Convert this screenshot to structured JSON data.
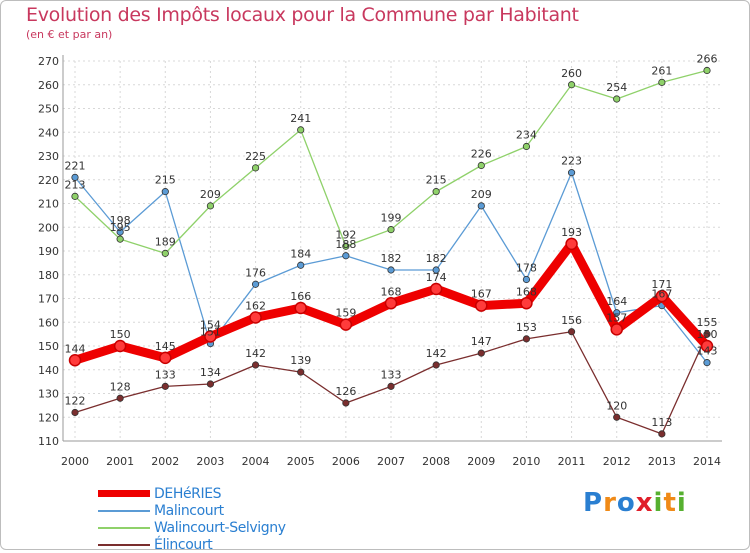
{
  "chart_data": {
    "type": "line",
    "title": "Evolution des Impôts locaux pour la Commune par Habitant",
    "subtitle": "(en € et par an)",
    "x": [
      "2000",
      "2001",
      "2002",
      "2003",
      "2004",
      "2005",
      "2006",
      "2007",
      "2008",
      "2009",
      "2010",
      "2011",
      "2012",
      "2013",
      "2014"
    ],
    "yticks": [
      "110",
      "120",
      "130",
      "140",
      "150",
      "160",
      "170",
      "180",
      "190",
      "200",
      "210",
      "220",
      "230",
      "240",
      "250",
      "260",
      "270"
    ],
    "ylim": [
      110,
      270
    ],
    "grid": true,
    "series": [
      {
        "name": "Malincourt",
        "color": "#5b9bd5",
        "values": [
          221,
          198,
          215,
          151,
          176,
          184,
          188,
          182,
          182,
          209,
          178,
          223,
          164,
          167,
          143
        ]
      },
      {
        "name": "Walincourt-Selvigny",
        "color": "#8fd16a",
        "values": [
          213,
          195,
          189,
          209,
          225,
          241,
          192,
          199,
          215,
          226,
          234,
          260,
          254,
          261,
          266
        ]
      },
      {
        "name": "Élincourt",
        "color": "#7a2e2e",
        "values": [
          122,
          128,
          133,
          134,
          142,
          139,
          126,
          133,
          142,
          147,
          153,
          156,
          120,
          113,
          155
        ]
      },
      {
        "name": "DEHéRIES",
        "color": "#ee0000",
        "values": [
          144,
          150,
          145,
          154,
          162,
          166,
          159,
          168,
          174,
          167,
          168,
          193,
          157,
          171,
          150
        ]
      }
    ],
    "legend": [
      "DEHéRIES",
      "Malincourt",
      "Walincourt-Selvigny",
      "Élincourt"
    ]
  },
  "legend_colors": {
    "DEHéRIES": "#ee0000",
    "Malincourt": "#5b9bd5",
    "Walincourt-Selvigny": "#8fd16a",
    "Élincourt": "#7a2e2e"
  },
  "logo": {
    "letters": [
      "P",
      "r",
      "o",
      "x",
      "i",
      "t",
      "i"
    ],
    "colors": [
      "#2a7fd1",
      "#f08a17",
      "#2a7fd1",
      "#e01f2a",
      "#56b030",
      "#f08a17",
      "#56b030"
    ]
  }
}
